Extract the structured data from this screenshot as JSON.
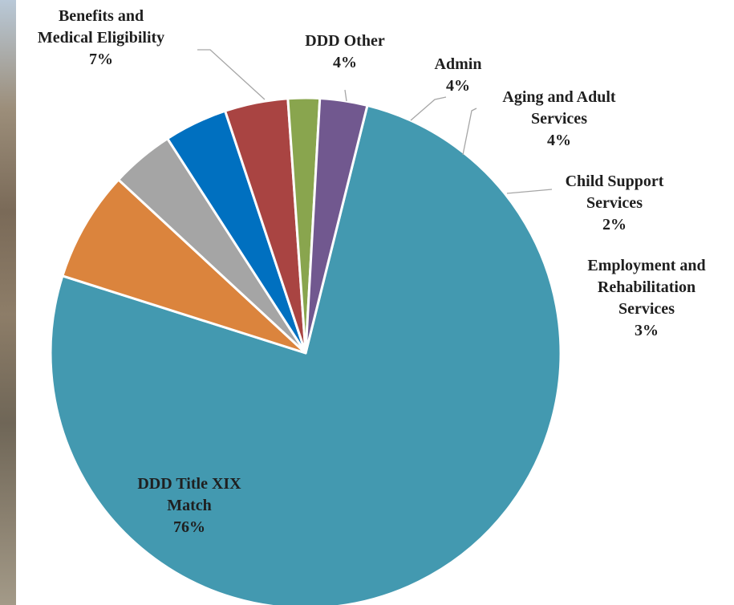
{
  "chart_data": {
    "type": "pie",
    "title": "",
    "start_angle_deg": 14,
    "direction": "clockwise",
    "slices": [
      {
        "name": "DDD Title XIX Match",
        "value": 76,
        "label_lines": [
          "DDD Title XIX",
          "Match"
        ],
        "value_label": "76%",
        "color": "#4399b0"
      },
      {
        "name": "Benefits and Medical Eligibility",
        "value": 7,
        "label_lines": [
          "Benefits and",
          "Medical Eligibility"
        ],
        "value_label": "7%",
        "color": "#db843d"
      },
      {
        "name": "DDD Other",
        "value": 4,
        "label_lines": [
          "DDD Other"
        ],
        "value_label": "4%",
        "color": "#a5a5a5"
      },
      {
        "name": "Admin",
        "value": 4,
        "label_lines": [
          "Admin"
        ],
        "value_label": "4%",
        "color": "#0070c0"
      },
      {
        "name": "Aging and Adult Services",
        "value": 4,
        "label_lines": [
          "Aging and Adult",
          "Services"
        ],
        "value_label": "4%",
        "color": "#a94442"
      },
      {
        "name": "Child Support Services",
        "value": 2,
        "label_lines": [
          "Child Support",
          "Services"
        ],
        "value_label": "2%",
        "color": "#89a54e"
      },
      {
        "name": "Employment and Rehabilitation Services",
        "value": 3,
        "label_lines": [
          "Employment and",
          "Rehabilitation",
          "Services"
        ],
        "value_label": "3%",
        "color": "#71588f"
      }
    ]
  }
}
